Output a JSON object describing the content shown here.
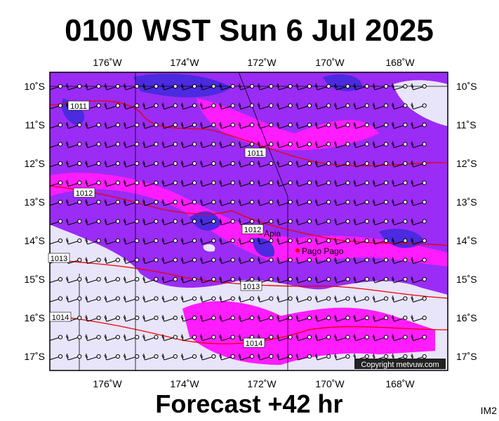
{
  "header": {
    "title": "0100 WST Sun 6 Jul 2025"
  },
  "map": {
    "lon_labels": [
      "176˚W",
      "174˚W",
      "172˚W",
      "170˚W",
      "168˚W"
    ],
    "lat_labels": [
      "10˚S",
      "11˚S",
      "12˚S",
      "13˚S",
      "14˚S",
      "15˚S",
      "16˚S",
      "17˚S"
    ],
    "isobar_labels": [
      "1011",
      "1011",
      "1012",
      "1012",
      "1013",
      "1013",
      "1014",
      "1014"
    ],
    "places": [
      "Apia",
      "Pago Pago"
    ],
    "copyright": "Copyright metvuw.com"
  },
  "footer": {
    "forecast": "Forecast +42 hr",
    "code": "IM2"
  }
}
